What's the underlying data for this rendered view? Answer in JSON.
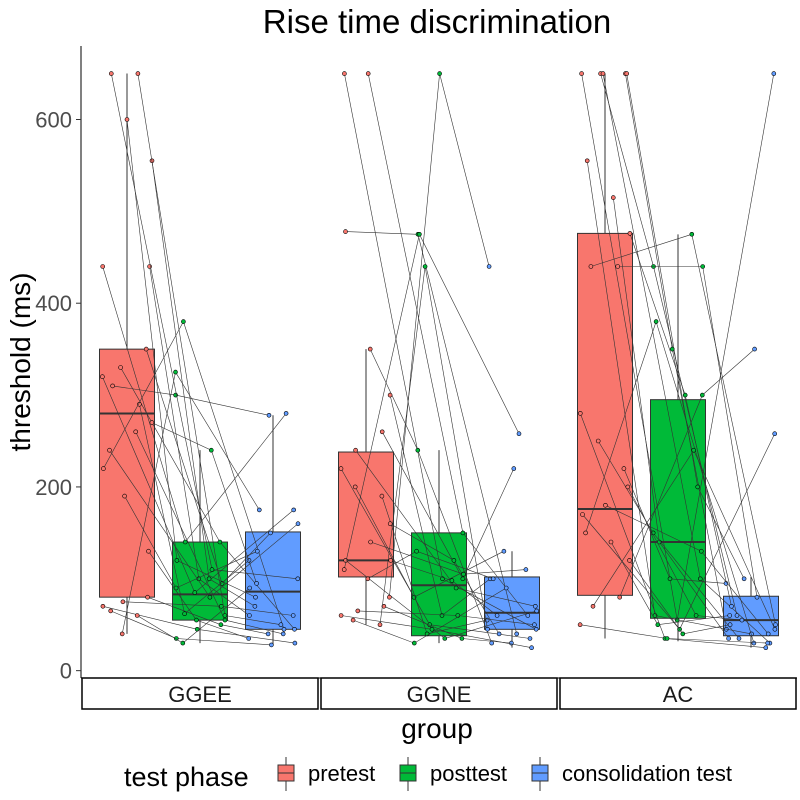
{
  "chart_data": {
    "type": "box",
    "title": "Rise time discrimination",
    "xlabel": "group",
    "ylabel": "threshold (ms)",
    "ylim": [
      -8,
      680
    ],
    "yticks": [
      0,
      200,
      400,
      600
    ],
    "grid": false,
    "legend": {
      "title": "test phase",
      "placement": "bottom",
      "entries": [
        "pretest",
        "posttest",
        "consolidation test"
      ]
    },
    "colors": {
      "pretest": "#F8766D",
      "posttest": "#00BA38",
      "consolidation test": "#619CFF"
    },
    "groups": [
      "GGEE",
      "GGNE",
      "AC"
    ],
    "series": [
      {
        "name": "pretest",
        "boxes": [
          {
            "group": "GGEE",
            "whisker_low": 40,
            "q1": 80,
            "median": 280,
            "q3": 350,
            "whisker_high": 650
          },
          {
            "group": "GGNE",
            "whisker_low": 50,
            "q1": 102,
            "median": 120,
            "q3": 238,
            "whisker_high": 350
          },
          {
            "group": "AC",
            "whisker_low": 35,
            "q1": 82,
            "median": 176,
            "q3": 476,
            "whisker_high": 650
          }
        ]
      },
      {
        "name": "posttest",
        "boxes": [
          {
            "group": "GGEE",
            "whisker_low": 30,
            "q1": 55,
            "median": 83,
            "q3": 140,
            "whisker_high": 240
          },
          {
            "group": "GGNE",
            "whisker_low": 30,
            "q1": 38,
            "median": 93,
            "q3": 150,
            "whisker_high": 240
          },
          {
            "group": "AC",
            "whisker_low": 32,
            "q1": 57,
            "median": 140,
            "q3": 295,
            "whisker_high": 475
          }
        ]
      },
      {
        "name": "consolidation test",
        "boxes": [
          {
            "group": "GGEE",
            "whisker_low": 28,
            "q1": 45,
            "median": 86,
            "q3": 151,
            "whisker_high": 278
          },
          {
            "group": "GGNE",
            "whisker_low": 25,
            "q1": 45,
            "median": 63,
            "q3": 102,
            "whisker_high": 130
          },
          {
            "group": "AC",
            "whisker_low": 25,
            "q1": 38,
            "median": 55,
            "q3": 81,
            "whisker_high": 102
          }
        ]
      }
    ],
    "participants": {
      "GGEE": [
        [
          600,
          120,
          80
        ],
        [
          440,
          100,
          60
        ],
        [
          350,
          95,
          150
        ],
        [
          330,
          140,
          45
        ],
        [
          320,
          85,
          175
        ],
        [
          310,
          300,
          278
        ],
        [
          290,
          62,
          120
        ],
        [
          270,
          240,
          95
        ],
        [
          260,
          55,
          40
        ],
        [
          240,
          80,
          160
        ],
        [
          220,
          380,
          45
        ],
        [
          190,
          90,
          130
        ],
        [
          130,
          55,
          35
        ],
        [
          80,
          50,
          40
        ],
        [
          75,
          70,
          60
        ],
        [
          70,
          45,
          30
        ],
        [
          65,
          35,
          28
        ],
        [
          60,
          30,
          90
        ],
        [
          555,
          100,
          70
        ],
        [
          650,
          60,
          50
        ],
        [
          650,
          110,
          100
        ],
        [
          440,
          140,
          280
        ],
        [
          40,
          325,
          175
        ]
      ],
      "GGNE": [
        [
          650,
          150,
          60
        ],
        [
          650,
          100,
          45
        ],
        [
          478,
          475,
          40
        ],
        [
          350,
          240,
          30
        ],
        [
          300,
          60,
          100
        ],
        [
          260,
          100,
          220
        ],
        [
          240,
          90,
          70
        ],
        [
          220,
          50,
          35
        ],
        [
          200,
          80,
          130
        ],
        [
          190,
          40,
          55
        ],
        [
          160,
          120,
          40
        ],
        [
          140,
          105,
          110
        ],
        [
          120,
          35,
          65
        ],
        [
          110,
          475,
          258
        ],
        [
          100,
          130,
          100
        ],
        [
          80,
          650,
          440
        ],
        [
          70,
          35,
          30
        ],
        [
          65,
          60,
          50
        ],
        [
          60,
          45,
          25
        ],
        [
          55,
          30,
          90
        ],
        [
          50,
          440,
          45
        ],
        [
          120,
          98,
          60
        ]
      ],
      "AC": [
        [
          650,
          440,
          60
        ],
        [
          650,
          350,
          45
        ],
        [
          650,
          200,
          100
        ],
        [
          650,
          100,
          30
        ],
        [
          650,
          55,
          650
        ],
        [
          555,
          60,
          40
        ],
        [
          515,
          140,
          35
        ],
        [
          476,
          300,
          70
        ],
        [
          440,
          440,
          80
        ],
        [
          440,
          475,
          50
        ],
        [
          280,
          35,
          25
        ],
        [
          250,
          150,
          35
        ],
        [
          220,
          100,
          95
        ],
        [
          200,
          60,
          55
        ],
        [
          180,
          130,
          40
        ],
        [
          170,
          45,
          258
        ],
        [
          150,
          380,
          30
        ],
        [
          140,
          50,
          60
        ],
        [
          120,
          40,
          50
        ],
        [
          80,
          300,
          350
        ],
        [
          70,
          240,
          45
        ],
        [
          50,
          35,
          30
        ]
      ]
    }
  }
}
